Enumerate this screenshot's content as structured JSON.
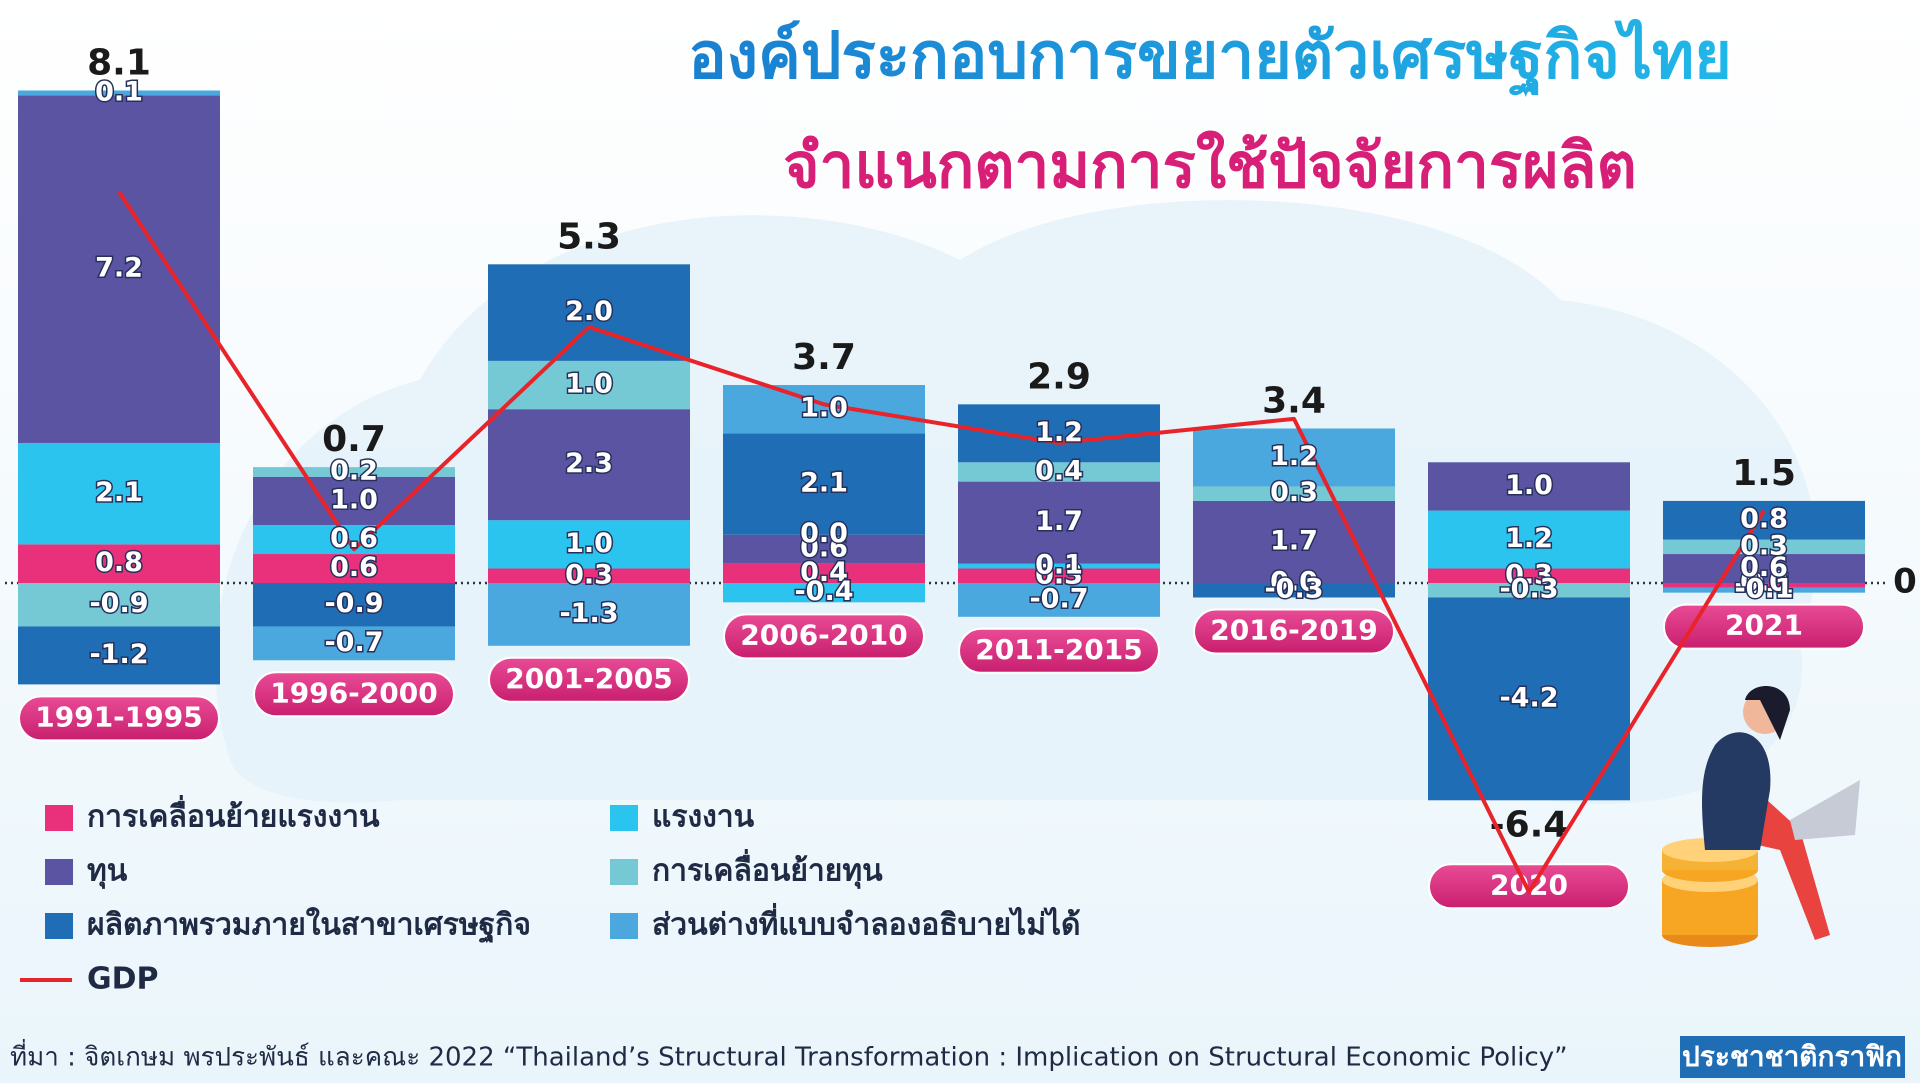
{
  "chart_data": {
    "type": "stacked-bar-line",
    "title": "องค์ประกอบการขยายตัวเศรษฐกิจไทย",
    "subtitle": "จำแนกตามการใช้ปัจจัยการผลิต",
    "source": "ที่มา : จิตเกษม พรประพันธ์ และคณะ 2022 “Thailand’s Structural Transformation : Implication on Structural Economic Policy”",
    "brand": "ประชาชาติกราฟิก",
    "categories": [
      "1991-1995",
      "1996-2000",
      "2001-2005",
      "2006-2010",
      "2011-2015",
      "2016-2019",
      "2020",
      "2021"
    ],
    "ylim": [
      -7,
      10.5
    ],
    "yticks": [
      0
    ],
    "series": [
      {
        "name": "การเคลื่อนย้ายแรงงาน",
        "color": "#e8317a",
        "values": [
          0.8,
          0.6,
          0.3,
          0.4,
          0.3,
          null,
          0.3,
          -0.1
        ],
        "value_labels": [
          "0.8",
          "0.6",
          "0.3",
          "0.4",
          "0.3",
          null,
          "0.3",
          "-0.1"
        ]
      },
      {
        "name": "แรงงาน",
        "color": "#2bc4ef",
        "values": [
          2.1,
          0.6,
          1.0,
          -0.4,
          0.1,
          0,
          1.2,
          0
        ],
        "value_labels": [
          "2.1",
          "0.6",
          "1.0",
          "-0.4",
          "0.1",
          "0.0",
          "1.2",
          "0.0"
        ]
      },
      {
        "name": "ทุน",
        "color": "#5b54a3",
        "values": [
          7.2,
          1.0,
          2.3,
          0.6,
          1.7,
          1.7,
          1.0,
          0.6
        ],
        "value_labels": [
          "7.2",
          "1.0",
          "2.3",
          "0.6",
          "1.7",
          "1.7",
          "1.0",
          "0.6"
        ]
      },
      {
        "name": "การเคลื่อนย้ายทุน",
        "color": "#74c9d4",
        "values": [
          -0.9,
          0.2,
          1.0,
          0,
          0.4,
          0.3,
          -0.3,
          0.3
        ],
        "value_labels": [
          "-0.9",
          "0.2",
          "1.0",
          "0.0",
          "0.4",
          "0.3",
          "-0.3",
          "0.3"
        ]
      },
      {
        "name": "ผลิตภาพรวมภายในสาขาเศรษฐกิจ",
        "color": "#1f6db5",
        "values": [
          -1.2,
          -0.9,
          2.0,
          2.1,
          1.2,
          -0.3,
          -4.2,
          0.8
        ],
        "value_labels": [
          "-1.2",
          "-0.9",
          "2.0",
          "2.1",
          "1.2",
          "-0.3",
          "-4.2",
          "0.8"
        ]
      },
      {
        "name": "ส่วนต่างที่แบบจำลองอธิบายไม่ได้",
        "color": "#4aa8de",
        "values": [
          0.1,
          -0.7,
          -1.3,
          1.0,
          -0.7,
          1.2,
          null,
          -0.1
        ],
        "value_labels": [
          "0.1",
          "-0.7",
          "-1.3",
          "1.0",
          "-0.7",
          "1.2",
          null,
          "-0.1"
        ]
      }
    ],
    "line": {
      "name": "GDP",
      "color": "#e8242a",
      "values": [
        8.1,
        0.7,
        5.3,
        3.7,
        2.9,
        3.4,
        -6.4,
        1.5
      ]
    }
  }
}
